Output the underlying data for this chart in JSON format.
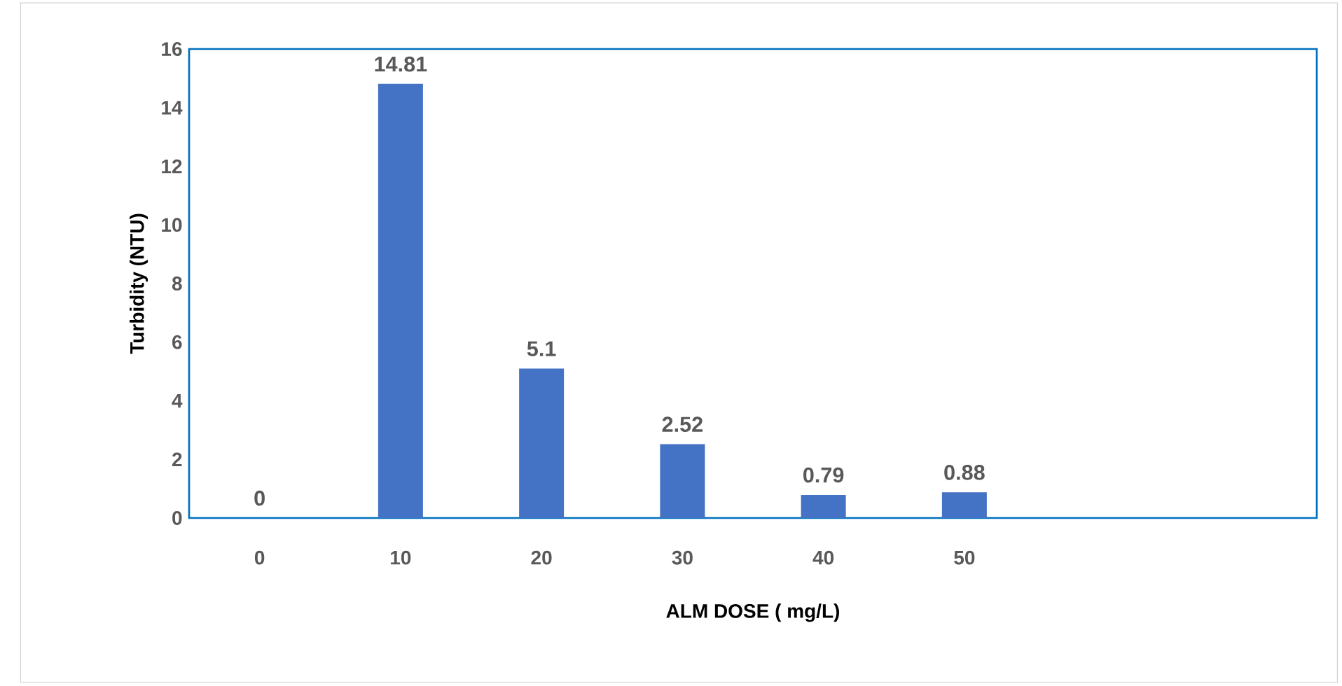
{
  "chart_data": {
    "type": "bar",
    "xlabel": "ALM DOSE ( mg/L)",
    "ylabel": "Turbidity (NTU)",
    "categories": [
      "0",
      "10",
      "20",
      "30",
      "40",
      "50",
      null,
      null
    ],
    "values": [
      0,
      14.81,
      5.1,
      2.52,
      0.79,
      0.88,
      null,
      null
    ],
    "color": "#4472c4",
    "ylim": [
      0,
      16
    ],
    "yticks": [
      0,
      2,
      4,
      6,
      8,
      10,
      12,
      14,
      16
    ],
    "grid": false,
    "data_labels": true
  }
}
